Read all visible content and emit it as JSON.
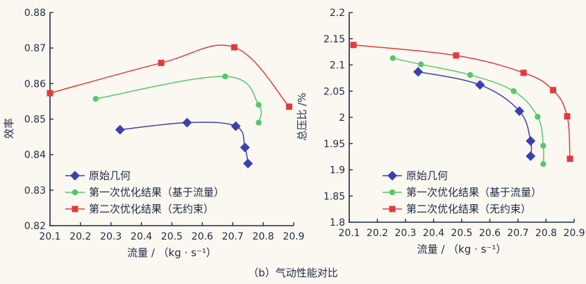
{
  "caption": "（b）气动性能对比",
  "colors": {
    "axis": "#1e2a44",
    "background": "#fbf8f1"
  },
  "chart_data": [
    {
      "type": "line",
      "xlabel": "流量 / （kg · s⁻¹）",
      "ylabel": "效率",
      "xlim": [
        20.1,
        20.9
      ],
      "ylim": [
        0.82,
        0.88
      ],
      "xticks": [
        "20.1",
        "20.2",
        "20.3",
        "20.4",
        "20.5",
        "20.6",
        "20.7",
        "20.8",
        "20.9"
      ],
      "yticks": [
        "0.82",
        "0.83",
        "0.84",
        "0.85",
        "0.86",
        "0.87",
        "0.88"
      ],
      "legend_position": "lower-left",
      "series": [
        {
          "name": "原始几何",
          "color": "#3a40b0",
          "marker": "diamond",
          "x": [
            20.33,
            20.55,
            20.71,
            20.74,
            20.75
          ],
          "y": [
            0.847,
            0.849,
            0.848,
            0.842,
            0.8375
          ]
        },
        {
          "name": "第一次优化结果（基于流量）",
          "color": "#52c96b",
          "marker": "circle",
          "x": [
            20.25,
            20.675,
            20.785,
            20.785
          ],
          "y": [
            0.8557,
            0.862,
            0.854,
            0.849
          ]
        },
        {
          "name": "第二次优化结果（无约束）",
          "color": "#e23a3a",
          "marker": "square",
          "x": [
            20.1,
            20.465,
            20.705,
            20.885
          ],
          "y": [
            0.8573,
            0.8658,
            0.8702,
            0.8535
          ]
        }
      ]
    },
    {
      "type": "line",
      "xlabel": "流量 / （kg · s⁻¹）",
      "ylabel": "总压比 /%",
      "xlim": [
        20.1,
        20.9
      ],
      "ylim": [
        1.8,
        2.2
      ],
      "xticks": [
        "20.1",
        "20.2",
        "20.3",
        "20.4",
        "20.5",
        "20.6",
        "20.7",
        "20.8",
        "20.9"
      ],
      "yticks": [
        "1.8",
        "1.85",
        "1.9",
        "1.95",
        "2",
        "2.05",
        "2.1",
        "2.15",
        "2.2"
      ],
      "legend_position": "lower-left",
      "series": [
        {
          "name": "原始几何",
          "color": "#3a40b0",
          "marker": "diamond",
          "x": [
            20.345,
            20.565,
            20.705,
            20.745,
            20.745
          ],
          "y": [
            2.087,
            2.062,
            2.012,
            1.955,
            1.926
          ]
        },
        {
          "name": "第一次优化结果（基于流量）",
          "color": "#52c96b",
          "marker": "circle",
          "x": [
            20.255,
            20.355,
            20.53,
            20.685,
            20.77,
            20.79,
            20.79
          ],
          "y": [
            2.113,
            2.101,
            2.081,
            2.05,
            2.001,
            1.946,
            1.911
          ]
        },
        {
          "name": "第二次优化结果（无约束）",
          "color": "#e23a3a",
          "marker": "square",
          "x": [
            20.115,
            20.48,
            20.72,
            20.825,
            20.875,
            20.885
          ],
          "y": [
            2.138,
            2.118,
            2.085,
            2.052,
            2.002,
            1.921
          ]
        }
      ]
    }
  ]
}
